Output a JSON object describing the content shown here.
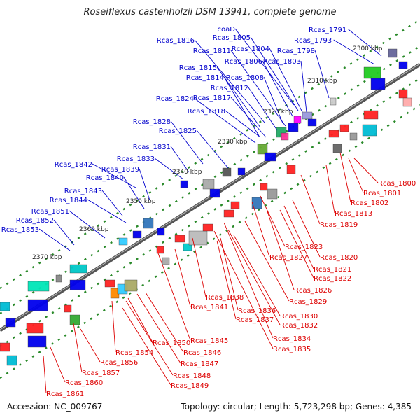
{
  "title": "Roseiflexus castenholzii DSM 13941, complete genome",
  "accession": "Accession: NC_009767",
  "topology": "Topology: circular; Length: 5,723,298 bp; Genes: 4,385",
  "colors": {
    "forward_label": "#0000cc",
    "reverse_label": "#dd0000",
    "backbone": "#555555",
    "tick": "#2a8a2a"
  },
  "scale_labels": [
    "2300 kbp",
    "2310 kbp",
    "2320 kbp",
    "2330 kbp",
    "2340 kbp",
    "2350 kbp",
    "2360 kbp",
    "2370 kbp"
  ],
  "forward_genes": [
    "Rcas_1791",
    "Rcas_1793",
    "coaD",
    "Rcas_1805",
    "Rcas_1816",
    "Rcas_1804",
    "Rcas_1811",
    "Rcas_1806",
    "Rcas_1798",
    "Rcas_1803",
    "Rcas_1815",
    "Rcas_1814",
    "Rcas_1808",
    "Rcas_1812",
    "Rcas_1817",
    "Rcas_1824",
    "Rcas_1818",
    "Rcas_1828",
    "Rcas_1825",
    "Rcas_1831",
    "Rcas_1833",
    "Rcas_1842",
    "Rcas_1839",
    "Rcas_1840",
    "Rcas_1843",
    "Rcas_1844",
    "Rcas_1851",
    "Rcas_1852",
    "Rcas_1853"
  ],
  "reverse_genes": [
    "Rcas_1800",
    "Rcas_1801",
    "Rcas_1802",
    "Rcas_1813",
    "Rcas_1819",
    "Rcas_1823",
    "Rcas_1827",
    "Rcas_1820",
    "Rcas_1821",
    "Rcas_1822",
    "Rcas_1826",
    "Rcas_1829",
    "Rcas_1838",
    "Rcas_1841",
    "Rcas_1836",
    "Rcas_1830",
    "Rcas_1837",
    "Rcas_1832",
    "Rcas_1834",
    "Rcas_1835",
    "Rcas_1845",
    "Rcas_1850",
    "Rcas_1846",
    "Rcas_1854",
    "Rcas_1847",
    "Rcas_1856",
    "Rcas_1848",
    "Rcas_1857",
    "Rcas_1849",
    "Rcas_1860",
    "Rcas_1861"
  ]
}
